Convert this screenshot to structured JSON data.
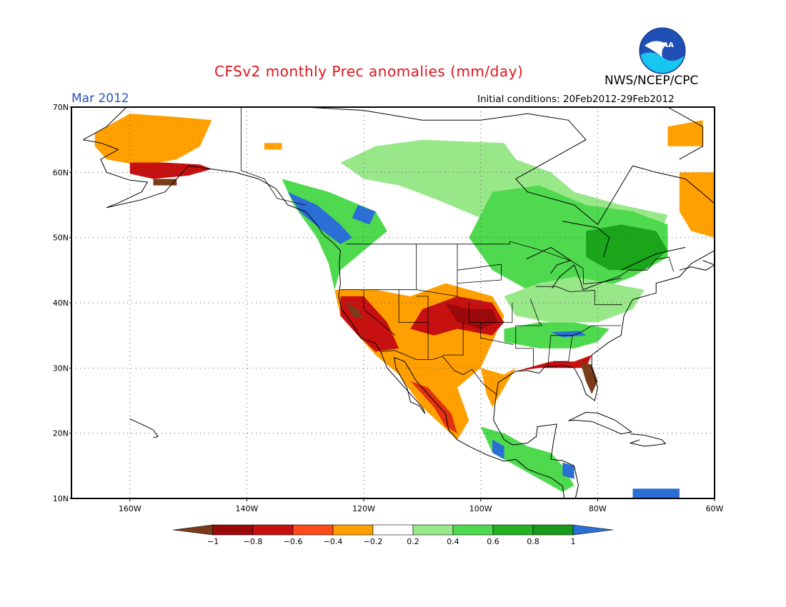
{
  "header": {
    "title": "CFSv2 monthly Prec anomalies (mm/day)",
    "month": "Mar 2012",
    "initial_conditions": "Initial conditions: 20Feb2012-29Feb2012",
    "agency": "NWS/NCEP/CPC",
    "logo_text": "NOAA"
  },
  "map": {
    "lat_range": [
      10,
      70
    ],
    "lon_range": [
      -170,
      -60
    ],
    "lat_labels": [
      {
        "lat": 70,
        "text": "70N"
      },
      {
        "lat": 60,
        "text": "60N"
      },
      {
        "lat": 50,
        "text": "50N"
      },
      {
        "lat": 40,
        "text": "40N"
      },
      {
        "lat": 30,
        "text": "30N"
      },
      {
        "lat": 20,
        "text": "20N"
      },
      {
        "lat": 10,
        "text": "10N"
      }
    ],
    "lon_labels": [
      {
        "lon": -160,
        "text": "160W"
      },
      {
        "lon": -140,
        "text": "140W"
      },
      {
        "lon": -120,
        "text": "120W"
      },
      {
        "lon": -100,
        "text": "100W"
      },
      {
        "lon": -80,
        "text": "80W"
      },
      {
        "lon": -60,
        "text": "60W"
      }
    ],
    "anomaly_regions": [
      {
        "name": "alaska-orange",
        "color": "#ff9f00",
        "pts": [
          [
            -166,
            66
          ],
          [
            -160,
            69
          ],
          [
            -152,
            68.5
          ],
          [
            -146,
            68
          ],
          [
            -148,
            64
          ],
          [
            -152,
            62
          ],
          [
            -158,
            61
          ],
          [
            -164,
            62
          ],
          [
            -166,
            64
          ]
        ]
      },
      {
        "name": "alaska-red",
        "color": "#c71010",
        "pts": [
          [
            -160,
            61.5
          ],
          [
            -154,
            61.5
          ],
          [
            -148,
            61.2
          ],
          [
            -146,
            60.5
          ],
          [
            -150,
            59.5
          ],
          [
            -156,
            59
          ],
          [
            -160,
            59.8
          ]
        ]
      },
      {
        "name": "alaska-brown",
        "color": "#7a3b1b",
        "pts": [
          [
            -156,
            59
          ],
          [
            -152,
            59
          ],
          [
            -152,
            58
          ],
          [
            -156,
            58
          ]
        ]
      },
      {
        "name": "yukon-orange-dot",
        "color": "#ff9f00",
        "pts": [
          [
            -137,
            64.5
          ],
          [
            -134,
            64.5
          ],
          [
            -134,
            63.5
          ],
          [
            -137,
            63.5
          ]
        ]
      },
      {
        "name": "canada-lightgreen",
        "color": "#98e88a",
        "pts": [
          [
            -124,
            61.5
          ],
          [
            -118,
            64
          ],
          [
            -110,
            65
          ],
          [
            -96,
            64.5
          ],
          [
            -94,
            62
          ],
          [
            -88,
            60
          ],
          [
            -84,
            57
          ],
          [
            -76,
            55
          ],
          [
            -68,
            53.5
          ],
          [
            -70,
            49
          ],
          [
            -78,
            46
          ],
          [
            -84,
            44
          ],
          [
            -92,
            44
          ],
          [
            -96,
            48
          ],
          [
            -100,
            53
          ],
          [
            -108,
            56
          ],
          [
            -114,
            58
          ],
          [
            -120,
            59
          ]
        ]
      },
      {
        "name": "canada-green",
        "color": "#4fd94f",
        "pts": [
          [
            -98,
            57
          ],
          [
            -90,
            58
          ],
          [
            -82,
            55
          ],
          [
            -74,
            54
          ],
          [
            -68,
            52
          ],
          [
            -68,
            47
          ],
          [
            -74,
            44
          ],
          [
            -80,
            42
          ],
          [
            -86,
            41
          ],
          [
            -92,
            42
          ],
          [
            -98,
            45
          ],
          [
            -102,
            50
          ]
        ]
      },
      {
        "name": "quebec-darkgreen",
        "color": "#1aa51a",
        "pts": [
          [
            -82,
            51
          ],
          [
            -76,
            52
          ],
          [
            -70,
            51
          ],
          [
            -68,
            48
          ],
          [
            -72,
            45
          ],
          [
            -78,
            45
          ],
          [
            -82,
            47
          ]
        ]
      },
      {
        "name": "bc-green",
        "color": "#4fd94f",
        "pts": [
          [
            -134,
            59
          ],
          [
            -126,
            57
          ],
          [
            -118,
            54
          ],
          [
            -116,
            51
          ],
          [
            -120,
            48
          ],
          [
            -124,
            45
          ],
          [
            -125,
            42
          ],
          [
            -126,
            46
          ],
          [
            -128,
            50
          ],
          [
            -132,
            55
          ]
        ]
      },
      {
        "name": "bc-blue",
        "color": "#2b6fd6",
        "pts": [
          [
            -133,
            57
          ],
          [
            -128,
            55
          ],
          [
            -124,
            52
          ],
          [
            -122,
            50
          ],
          [
            -124,
            49
          ],
          [
            -127,
            51
          ],
          [
            -131,
            54
          ]
        ]
      },
      {
        "name": "rockies-blue",
        "color": "#2b6fd6",
        "pts": [
          [
            -121,
            55
          ],
          [
            -118,
            54
          ],
          [
            -119,
            52
          ],
          [
            -122,
            53
          ]
        ]
      },
      {
        "name": "southwest-orange",
        "color": "#ff9f00",
        "pts": [
          [
            -125,
            42
          ],
          [
            -118,
            42
          ],
          [
            -112,
            41
          ],
          [
            -106,
            43
          ],
          [
            -98,
            41
          ],
          [
            -96,
            38
          ],
          [
            -98,
            34
          ],
          [
            -100,
            30
          ],
          [
            -104,
            27
          ],
          [
            -102,
            22
          ],
          [
            -104,
            19
          ],
          [
            -110,
            24
          ],
          [
            -114,
            29
          ],
          [
            -118,
            32
          ],
          [
            -121,
            35
          ],
          [
            -124,
            38
          ]
        ]
      },
      {
        "name": "southwest-red",
        "color": "#c71010",
        "pts": [
          [
            -124,
            41
          ],
          [
            -120,
            41
          ],
          [
            -116,
            37
          ],
          [
            -114,
            33
          ],
          [
            -118,
            32.5
          ],
          [
            -121,
            35
          ],
          [
            -124,
            38
          ]
        ]
      },
      {
        "name": "colorado-red",
        "color": "#c71010",
        "pts": [
          [
            -110,
            39
          ],
          [
            -104,
            41
          ],
          [
            -98,
            40
          ],
          [
            -96,
            37
          ],
          [
            -98,
            35
          ],
          [
            -104,
            36
          ],
          [
            -108,
            35
          ],
          [
            -112,
            36
          ]
        ]
      },
      {
        "name": "kansas-darkred",
        "color": "#9b0a0a",
        "pts": [
          [
            -106,
            40
          ],
          [
            -102,
            39
          ],
          [
            -98,
            39
          ],
          [
            -97,
            37
          ],
          [
            -100,
            36
          ],
          [
            -104,
            37
          ]
        ]
      },
      {
        "name": "cal-brown",
        "color": "#7a3b1b",
        "pts": [
          [
            -123,
            40
          ],
          [
            -121,
            39
          ],
          [
            -120,
            37.5
          ],
          [
            -122,
            38
          ]
        ]
      },
      {
        "name": "mexico-red",
        "color": "#e03212",
        "pts": [
          [
            -112,
            28
          ],
          [
            -108,
            24
          ],
          [
            -106,
            21
          ],
          [
            -104,
            20
          ],
          [
            -105,
            23
          ],
          [
            -109,
            27
          ]
        ]
      },
      {
        "name": "texas-orange",
        "color": "#ff9f00",
        "pts": [
          [
            -100,
            30
          ],
          [
            -96,
            29
          ],
          [
            -94,
            30
          ],
          [
            -96,
            27
          ],
          [
            -98,
            24
          ],
          [
            -99,
            26
          ]
        ]
      },
      {
        "name": "gulf-red",
        "color": "#c71010",
        "pts": [
          [
            -96,
            29
          ],
          [
            -92,
            30
          ],
          [
            -88,
            31
          ],
          [
            -84,
            31
          ],
          [
            -81,
            32
          ],
          [
            -82,
            30
          ],
          [
            -86,
            30
          ],
          [
            -90,
            30
          ],
          [
            -94,
            29.5
          ]
        ]
      },
      {
        "name": "florida-brown",
        "color": "#7a3b1b",
        "pts": [
          [
            -83,
            31
          ],
          [
            -81,
            30.5
          ],
          [
            -80,
            28
          ],
          [
            -81,
            26
          ],
          [
            -82,
            28
          ]
        ]
      },
      {
        "name": "southeast-green",
        "color": "#4fd94f",
        "pts": [
          [
            -96,
            36
          ],
          [
            -90,
            37
          ],
          [
            -84,
            37
          ],
          [
            -78,
            36
          ],
          [
            -80,
            34
          ],
          [
            -84,
            33
          ],
          [
            -90,
            33
          ],
          [
            -96,
            34
          ]
        ]
      },
      {
        "name": "southeast-blue",
        "color": "#2b6fd6",
        "pts": [
          [
            -88,
            35.5
          ],
          [
            -83,
            35.7
          ],
          [
            -82,
            35
          ],
          [
            -86,
            34.7
          ]
        ]
      },
      {
        "name": "midwest-lightgreen",
        "color": "#98e88a",
        "pts": [
          [
            -96,
            41
          ],
          [
            -90,
            43
          ],
          [
            -84,
            44
          ],
          [
            -78,
            43
          ],
          [
            -72,
            42
          ],
          [
            -74,
            39
          ],
          [
            -80,
            37
          ],
          [
            -88,
            37
          ],
          [
            -94,
            38
          ]
        ]
      },
      {
        "name": "central-america-green",
        "color": "#4fd94f",
        "pts": [
          [
            -100,
            21
          ],
          [
            -96,
            20
          ],
          [
            -92,
            18
          ],
          [
            -88,
            17
          ],
          [
            -86,
            15
          ],
          [
            -84,
            12
          ],
          [
            -86,
            11
          ],
          [
            -90,
            13
          ],
          [
            -94,
            15
          ],
          [
            -98,
            17
          ]
        ]
      },
      {
        "name": "central-america-blue",
        "color": "#2b6fd6",
        "pts": [
          [
            -98,
            19
          ],
          [
            -96,
            18
          ],
          [
            -96,
            16
          ],
          [
            -98,
            17
          ]
        ]
      },
      {
        "name": "honduras-blue",
        "color": "#2b6fd6",
        "pts": [
          [
            -86,
            15.5
          ],
          [
            -84,
            15
          ],
          [
            -84,
            13
          ],
          [
            -86,
            13.5
          ]
        ]
      },
      {
        "name": "labrador-red",
        "color": "#c71010",
        "pts": [
          [
            -64,
            59
          ],
          [
            -60,
            58
          ],
          [
            -60,
            53
          ],
          [
            -64,
            54
          ]
        ]
      },
      {
        "name": "labrador-orange",
        "color": "#ff9f00",
        "pts": [
          [
            -66,
            60
          ],
          [
            -60,
            60
          ],
          [
            -60,
            50
          ],
          [
            -64,
            51
          ],
          [
            -66,
            54
          ]
        ]
      },
      {
        "name": "greenland-orange",
        "color": "#ff9f00",
        "pts": [
          [
            -68,
            67
          ],
          [
            -62,
            68
          ],
          [
            -62,
            64
          ],
          [
            -68,
            64
          ]
        ]
      },
      {
        "name": "caribbean-blue",
        "color": "#2b6fd6",
        "pts": [
          [
            -74,
            11.5
          ],
          [
            -66,
            11.5
          ],
          [
            -66,
            10
          ],
          [
            -74,
            10
          ]
        ]
      }
    ]
  },
  "colorbar": {
    "labels": [
      "−1",
      "−0.8",
      "−0.6",
      "−0.4",
      "−0.2",
      "0.2",
      "0.4",
      "0.6",
      "0.8",
      "1"
    ],
    "colors": [
      "#7a3b1b",
      "#9b0a0a",
      "#c71010",
      "#ff4a1a",
      "#ff9f00",
      "#ffffff",
      "#98e88a",
      "#4fd94f",
      "#22b222",
      "#1a9a1a",
      "#2b6fd6"
    ]
  }
}
